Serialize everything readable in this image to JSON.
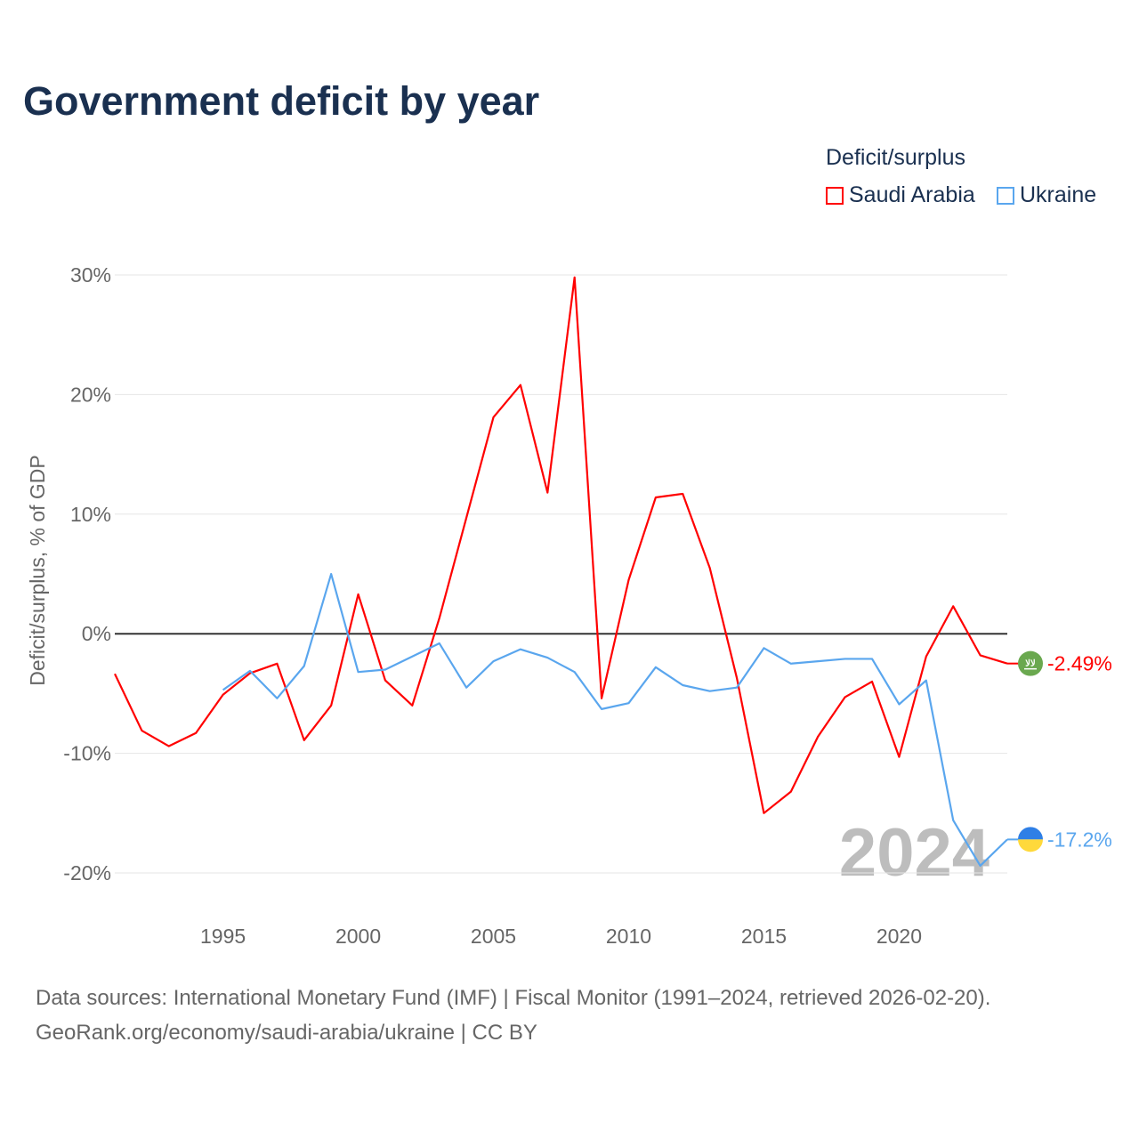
{
  "chart_data": {
    "type": "line",
    "title": "Government deficit by year",
    "ylabel": "Deficit/surplus, % of GDP",
    "xlabel": "",
    "ylim": [
      -20,
      30
    ],
    "xlim": [
      1991,
      2024
    ],
    "yticks": [
      -20,
      -10,
      0,
      10,
      20,
      30
    ],
    "ytick_labels": [
      "-20%",
      "-10%",
      "0%",
      "10%",
      "20%",
      "30%"
    ],
    "xticks": [
      1995,
      2000,
      2005,
      2010,
      2015,
      2020
    ],
    "xtick_labels": [
      "1995",
      "2000",
      "2005",
      "2010",
      "2015",
      "2020"
    ],
    "grid": true,
    "legend_title": "Deficit/surplus",
    "legend_position": "top-right",
    "year_watermark": "2024",
    "series": [
      {
        "name": "Saudi Arabia",
        "color": "#ff0000",
        "x": [
          1991,
          1992,
          1993,
          1994,
          1995,
          1996,
          1997,
          1998,
          1999,
          2000,
          2001,
          2002,
          2003,
          2004,
          2005,
          2006,
          2007,
          2008,
          2009,
          2010,
          2011,
          2012,
          2013,
          2014,
          2015,
          2016,
          2017,
          2018,
          2019,
          2020,
          2021,
          2022,
          2023,
          2024
        ],
        "values": [
          -3.35,
          -8.1,
          -9.4,
          -8.3,
          -5.1,
          -3.3,
          -2.5,
          -8.9,
          -6.0,
          3.3,
          -3.9,
          -6.0,
          1.3,
          9.7,
          18.1,
          20.8,
          11.8,
          29.8,
          -5.4,
          4.5,
          11.4,
          11.7,
          5.5,
          -3.7,
          -15.0,
          -13.2,
          -8.6,
          -5.3,
          -4.0,
          -10.3,
          -1.9,
          2.3,
          -1.8,
          -2.49
        ],
        "end_label": "-2.49%",
        "flag": "saudi-arabia-flag"
      },
      {
        "name": "Ukraine",
        "color": "#5aa6ee",
        "x": [
          1995,
          1996,
          1997,
          1998,
          1999,
          2000,
          2001,
          2002,
          2003,
          2004,
          2005,
          2006,
          2007,
          2008,
          2009,
          2010,
          2011,
          2012,
          2013,
          2014,
          2015,
          2016,
          2017,
          2018,
          2019,
          2020,
          2021,
          2022,
          2023,
          2024
        ],
        "values": [
          -4.7,
          -3.1,
          -5.4,
          -2.7,
          5.0,
          -3.2,
          -3.0,
          -1.9,
          -0.8,
          -4.5,
          -2.3,
          -1.3,
          -2.0,
          -3.2,
          -6.3,
          -5.8,
          -2.8,
          -4.3,
          -4.8,
          -4.5,
          -1.2,
          -2.5,
          -2.3,
          -2.1,
          -2.1,
          -5.9,
          -3.9,
          -15.6,
          -19.4,
          -17.2
        ],
        "end_label": "-17.2%",
        "flag": "ukraine-flag"
      }
    ]
  },
  "footer": {
    "line1": "Data sources: International Monetary Fund (IMF) | Fiscal Monitor (1991–2024, retrieved 2026-02-20).",
    "line2": "GeoRank.org/economy/saudi-arabia/ukraine | CC BY"
  }
}
